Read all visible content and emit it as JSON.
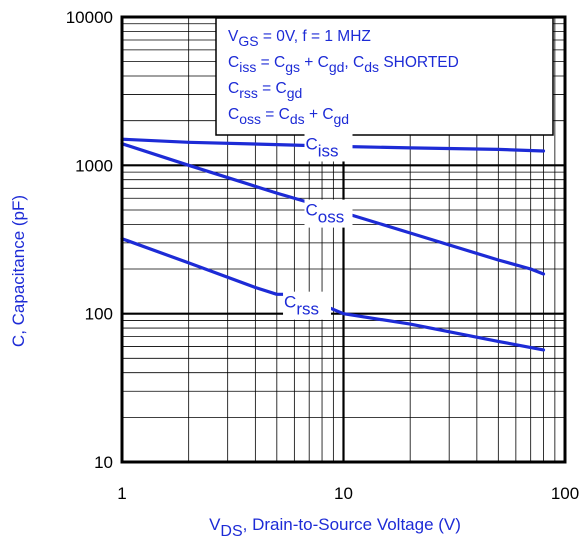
{
  "chart_data": {
    "type": "line",
    "xscale": "log",
    "yscale": "log",
    "xlim": [
      1,
      100
    ],
    "ylim": [
      10,
      10000
    ],
    "grid": true,
    "title": "",
    "ylabel": "C, Capacitance (pF)",
    "xlabel": {
      "base": "V",
      "sub": "DS",
      "rest": ", Drain-to-Source Voltage (V)"
    },
    "x_ticks": [
      {
        "value": 1,
        "label": "1"
      },
      {
        "value": 10,
        "label": "10"
      },
      {
        "value": 100,
        "label": "100"
      }
    ],
    "y_ticks": [
      {
        "value": 10,
        "label": "10"
      },
      {
        "value": 100,
        "label": "100"
      },
      {
        "value": 1000,
        "label": "1000"
      },
      {
        "value": 10000,
        "label": "10000"
      }
    ],
    "legend_position": "top-right",
    "legend_lines": [
      [
        {
          "t": "V"
        },
        {
          "t": "GS",
          "sub": true
        },
        {
          "t": " = 0V,     f = 1 MHZ"
        }
      ],
      [
        {
          "t": "C"
        },
        {
          "t": "iss",
          "sub": true
        },
        {
          "t": " = C"
        },
        {
          "t": "gs",
          "sub": true
        },
        {
          "t": " + C"
        },
        {
          "t": "gd",
          "sub": true
        },
        {
          "t": ",  C"
        },
        {
          "t": "ds",
          "sub": true
        },
        {
          "t": " SHORTED"
        }
      ],
      [
        {
          "t": "C"
        },
        {
          "t": "rss",
          "sub": true
        },
        {
          "t": " = C"
        },
        {
          "t": "gd",
          "sub": true
        }
      ],
      [
        {
          "t": "C"
        },
        {
          "t": "oss",
          "sub": true
        },
        {
          "t": " = C"
        },
        {
          "t": "ds",
          "sub": true
        },
        {
          "t": " + C"
        },
        {
          "t": "gd",
          "sub": true
        }
      ]
    ],
    "series": [
      {
        "name": "Ciss",
        "label_base": "C",
        "label_sub": "iss",
        "label_at": 10,
        "x": [
          1,
          2,
          5,
          10,
          20,
          50,
          80
        ],
        "y": [
          1500,
          1430,
          1380,
          1340,
          1310,
          1280,
          1250
        ]
      },
      {
        "name": "Coss",
        "label_base": "C",
        "label_sub": "oss",
        "label_at": 10,
        "x": [
          1,
          2,
          5,
          10,
          20,
          50,
          70,
          80
        ],
        "y": [
          1400,
          1000,
          650,
          480,
          350,
          230,
          200,
          185
        ]
      },
      {
        "name": "Crss",
        "label_base": "C",
        "label_sub": "rss",
        "label_at": 8,
        "x": [
          1,
          2,
          4,
          5,
          6,
          8,
          10,
          20,
          50,
          80
        ],
        "y": [
          320,
          220,
          150,
          135,
          135,
          115,
          100,
          85,
          65,
          57
        ]
      }
    ],
    "colors": {
      "curves": "#1d2bd6",
      "axis_text": "#1d2bd6",
      "frame": "#000000",
      "grid": "#000000"
    }
  }
}
